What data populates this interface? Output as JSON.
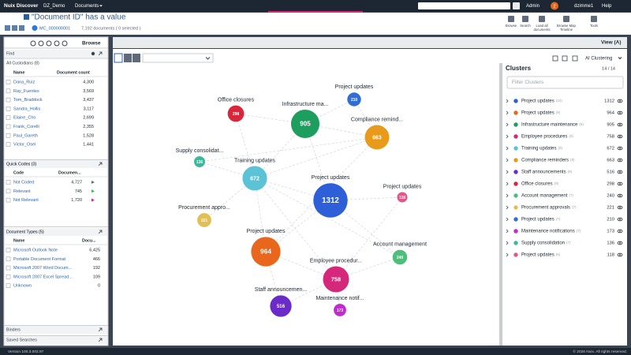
{
  "top_bar": {
    "app_name": "Nuix Discover",
    "case": "DZ_Demo",
    "module": "Documents",
    "user_role": "Admin",
    "notifications": "2",
    "username": "dzimme1",
    "help": "Help"
  },
  "header": {
    "title": "\"Document ID\" has a value",
    "document_id": "MC_000000001",
    "document_count": "7,192 documents ( 0 selected )",
    "toolbar": [
      [
        "Browse"
      ],
      [
        "Search"
      ],
      [
        "Load all",
        "documents"
      ],
      [
        "Browse Map",
        "Timeline"
      ],
      [
        "Tools"
      ]
    ]
  },
  "left_panel": {
    "title": "Browse",
    "find": "Find",
    "custodians": {
      "title": "All Custodians (8)",
      "columns": [
        "Name",
        "Document count"
      ],
      "rows": [
        [
          "Dana_Ruiz",
          "4,300"
        ],
        [
          "Ray_Fuentes",
          "3,569"
        ],
        [
          "Tom_Braddock",
          "3,437"
        ],
        [
          "Sandra_Hollis",
          "3,117"
        ],
        [
          "Elaine_Cho",
          "2,699"
        ],
        [
          "Frank_Corelli",
          "2,355"
        ],
        [
          "Paul_Gareth",
          "1,528"
        ],
        [
          "Victor_Osei",
          "1,441"
        ]
      ]
    },
    "quick_codes": {
      "title": "Quick Codes (3)",
      "columns": [
        "Code",
        "Documen..."
      ],
      "rows": [
        [
          "Not Coded",
          "4,727"
        ],
        [
          "Relevant",
          "745"
        ],
        [
          "Not Relevant",
          "1,720"
        ]
      ]
    },
    "document_types": {
      "title": "Document Types (5)",
      "columns": [
        "Name",
        "Docu..."
      ],
      "rows": [
        [
          "Microsoft Outlook Note",
          "6,425"
        ],
        [
          "Portable Document Format",
          "466"
        ],
        [
          "Microsoft 2007 Word Docum...",
          "192"
        ],
        [
          "Microsoft 2007 Excel Spread...",
          "109"
        ],
        [
          "Unknown",
          "0"
        ]
      ]
    },
    "binders": "Binders",
    "saved_searches": "Saved Searches"
  },
  "main": {
    "view": "View (A)",
    "clustering_mode": "AI Clustering"
  },
  "cluster_map": {
    "nodes": [
      {
        "label": "Project updates",
        "value": 210,
        "color": "#2f6fd3"
      },
      {
        "label": "Office closures",
        "value": 298,
        "color": "#d8263a"
      },
      {
        "label": "Infrastructure ma...",
        "value": 905,
        "color": "#1e9e5e"
      },
      {
        "label": "Compliance remind...",
        "value": 663,
        "color": "#e99a1a"
      },
      {
        "label": "Supply consolidat...",
        "value": 136,
        "color": "#3cb99a"
      },
      {
        "label": "Training updates",
        "value": 672,
        "color": "#5cc3d6"
      },
      {
        "label": "Project updates",
        "value": 1312,
        "color": "#2c5fd8"
      },
      {
        "label": "Project updates",
        "value": 118,
        "color": "#e0578a"
      },
      {
        "label": "Procurement appro...",
        "value": 221,
        "color": "#e2bf55"
      },
      {
        "label": "Project updates",
        "value": 964,
        "color": "#e8671c"
      },
      {
        "label": "Account management",
        "value": 240,
        "color": "#4dbf7a"
      },
      {
        "label": "Employee procedur...",
        "value": 758,
        "color": "#d6287a"
      },
      {
        "label": "Staff announcemen...",
        "value": 516,
        "color": "#6a2bc8"
      },
      {
        "label": "Maintenance notif...",
        "value": 173,
        "color": "#c02ad0"
      }
    ]
  },
  "clusters_panel": {
    "title": "Clusters",
    "shown": "14 / 14",
    "filter_placeholder": "Filter Clusters",
    "items": [
      {
        "name": "Project updates",
        "docs": "(10)",
        "value": 1312,
        "color": "#2c5fd8"
      },
      {
        "name": "Project updates",
        "docs": "(9)",
        "value": 964,
        "color": "#e8671c"
      },
      {
        "name": "Infrastructure maintenance",
        "docs": "(9)",
        "value": 905,
        "color": "#1e9e5e"
      },
      {
        "name": "Employee procedures",
        "docs": "(9)",
        "value": 758,
        "color": "#d6287a"
      },
      {
        "name": "Training updates",
        "docs": "(9)",
        "value": 672,
        "color": "#5cc3d6"
      },
      {
        "name": "Compliance reminders",
        "docs": "(9)",
        "value": 663,
        "color": "#e99a1a"
      },
      {
        "name": "Staff announcements",
        "docs": "(9)",
        "value": 516,
        "color": "#6a2bc8"
      },
      {
        "name": "Office closures",
        "docs": "(9)",
        "value": 298,
        "color": "#d8263a"
      },
      {
        "name": "Account management",
        "docs": "(7)",
        "value": 240,
        "color": "#4dbf7a"
      },
      {
        "name": "Procurement approvals",
        "docs": "(7)",
        "value": 221,
        "color": "#e2bf55"
      },
      {
        "name": "Project updates",
        "docs": "(7)",
        "value": 210,
        "color": "#2f6fd3"
      },
      {
        "name": "Maintenance notifications",
        "docs": "(7)",
        "value": 173,
        "color": "#c02ad0"
      },
      {
        "name": "Supply consolidation",
        "docs": "(7)",
        "value": 136,
        "color": "#3cb99a"
      },
      {
        "name": "Project updates",
        "docs": "(6)",
        "value": 118,
        "color": "#e0578a"
      }
    ]
  },
  "footer": {
    "version": "Version 100.3.002.97",
    "copyright": "© 2026 Nuix. All rights reserved."
  }
}
